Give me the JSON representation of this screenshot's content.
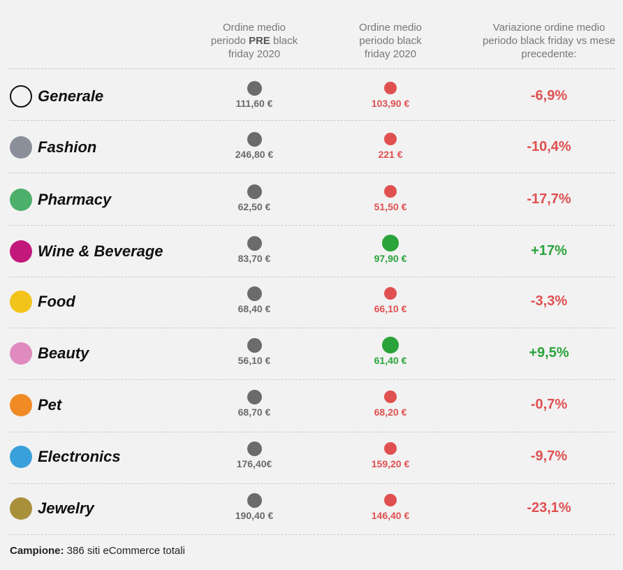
{
  "header": {
    "columns": [
      {
        "parts": [
          "Ordine medio periodo ",
          "PRE",
          " black friday 2020"
        ]
      },
      {
        "parts": [
          "Ordine medio periodo black friday 2020"
        ]
      },
      {
        "parts": [
          "Variazione ordine medio periodo black friday vs mese precedente:"
        ]
      }
    ]
  },
  "table": {
    "rows": [
      {
        "name": "Generale",
        "pre": "111,60 €",
        "black_friday": "103,90 €",
        "variation": "-6,9%"
      },
      {
        "name": "Fashion",
        "pre": "246,80 €",
        "black_friday": "221 €",
        "variation": "-10,4%"
      },
      {
        "name": "Pharmacy",
        "pre": "62,50 €",
        "black_friday": "51,50 €",
        "variation": "-17,7%"
      },
      {
        "name": "Wine & Beverage",
        "pre": "83,70 €",
        "black_friday": "97,90 €",
        "variation": "+17%"
      },
      {
        "name": "Food",
        "pre": "68,40 €",
        "black_friday": "66,10 €",
        "variation": "-3,3%"
      },
      {
        "name": "Beauty",
        "pre": "56,10 €",
        "black_friday": "61,40 €",
        "variation": "+9,5%"
      },
      {
        "name": "Pet",
        "pre": "68,70 €",
        "black_friday": "68,20 €",
        "variation": "-0,7%"
      },
      {
        "name": "Electronics",
        "pre": "176,40€",
        "black_friday": "159,20 €",
        "variation": "-9,7%"
      },
      {
        "name": "Jewelry",
        "pre": "190,40 €",
        "black_friday": "146,40 €",
        "variation": "-23,1%"
      }
    ]
  },
  "footer": {
    "label": "Campione:",
    "text": " 386 siti eCommerce totali"
  }
}
